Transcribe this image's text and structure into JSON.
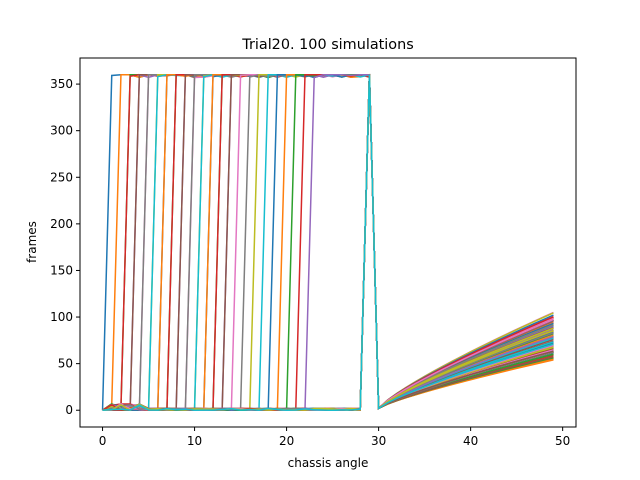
{
  "chart_data": {
    "type": "line",
    "title": "Trial20. 100 simulations",
    "xlabel": "chassis angle",
    "ylabel": "frames",
    "xlim": [
      -2.45,
      51.45
    ],
    "ylim": [
      -18,
      378
    ],
    "xticks": [
      0,
      10,
      20,
      30,
      40,
      50
    ],
    "yticks": [
      0,
      50,
      100,
      150,
      200,
      250,
      300,
      350
    ],
    "grid": false,
    "legend": "none",
    "series_count": 100,
    "x": [
      0,
      1,
      2,
      3,
      4,
      5,
      6,
      7,
      8,
      9,
      10,
      11,
      12,
      13,
      14,
      15,
      16,
      17,
      18,
      19,
      20,
      21,
      22,
      23,
      24,
      25,
      26,
      27,
      28,
      29,
      30,
      31,
      32,
      33,
      34,
      35,
      36,
      37,
      38,
      39,
      40,
      41,
      42,
      43,
      44,
      45,
      46,
      47,
      48,
      49
    ],
    "plateau_value": 360,
    "ramp_start": 30,
    "ramp_start_value": 2,
    "final_values_range": [
      54,
      105
    ],
    "colors": [
      "#1f77b4",
      "#ff7f0e",
      "#2ca02c",
      "#d62728",
      "#9467bd",
      "#8c564b",
      "#e377c2",
      "#7f7f7f",
      "#bcbd22",
      "#17becf"
    ],
    "series": [
      {
        "jump_at": 1,
        "final": 62
      },
      {
        "jump_at": 2,
        "final": 88
      },
      {
        "jump_at": 3,
        "final": 70
      },
      {
        "jump_at": 3,
        "final": 57
      },
      {
        "jump_at": 4,
        "final": 95
      },
      {
        "jump_at": 4,
        "final": 66
      },
      {
        "jump_at": 5,
        "final": 78
      },
      {
        "jump_at": 5,
        "final": 60
      },
      {
        "jump_at": 6,
        "final": 84
      },
      {
        "jump_at": 6,
        "final": 73
      },
      {
        "jump_at": 7,
        "final": 90
      },
      {
        "jump_at": 7,
        "final": 58
      },
      {
        "jump_at": 8,
        "final": 80
      },
      {
        "jump_at": 8,
        "final": 64
      },
      {
        "jump_at": 9,
        "final": 99
      },
      {
        "jump_at": 9,
        "final": 69
      },
      {
        "jump_at": 10,
        "final": 76
      },
      {
        "jump_at": 10,
        "final": 55
      },
      {
        "jump_at": 11,
        "final": 86
      },
      {
        "jump_at": 11,
        "final": 62
      },
      {
        "jump_at": 12,
        "final": 72
      },
      {
        "jump_at": 12,
        "final": 94
      },
      {
        "jump_at": 13,
        "final": 67
      },
      {
        "jump_at": 13,
        "final": 59
      },
      {
        "jump_at": 14,
        "final": 82
      },
      {
        "jump_at": 14,
        "final": 74
      },
      {
        "jump_at": 15,
        "final": 63
      },
      {
        "jump_at": 16,
        "final": 97
      },
      {
        "jump_at": 17,
        "final": 68
      },
      {
        "jump_at": 18,
        "final": 79
      },
      {
        "jump_at": 19,
        "final": 61
      },
      {
        "jump_at": 20,
        "final": 85
      },
      {
        "jump_at": 21,
        "final": 71
      },
      {
        "jump_at": 22,
        "final": 65
      },
      {
        "jump_at": 23,
        "final": 92
      },
      {
        "jump_at": 29,
        "final": 56
      },
      {
        "jump_at": 29,
        "final": 105
      },
      {
        "jump_at": 29,
        "final": 60
      }
    ]
  }
}
